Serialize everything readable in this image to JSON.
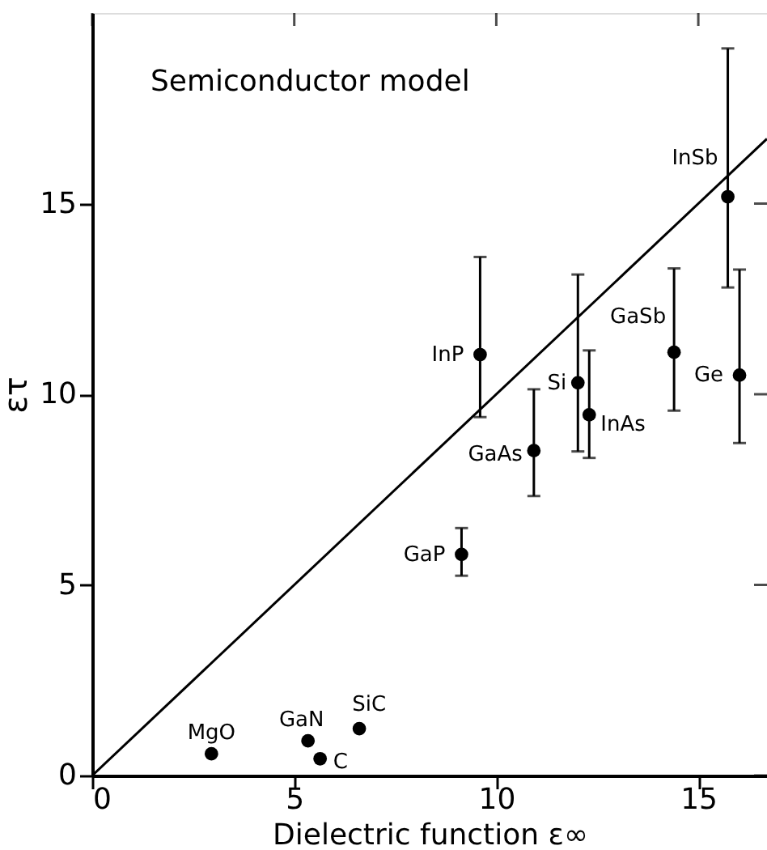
{
  "chart_data": {
    "type": "scatter",
    "xlabel": "Dielectric function ε∞",
    "ylabel": "ετ",
    "xlim": [
      0,
      16.7
    ],
    "ylim": [
      0,
      20
    ],
    "xticks": [
      0,
      5,
      10,
      15
    ],
    "yticks": [
      0,
      5,
      10,
      15
    ],
    "grid": false,
    "marker": "circle",
    "series": [
      {
        "color": "#000000",
        "x": [
          2.95,
          5.34,
          5.64,
          6.61,
          9.14,
          10.93,
          9.6,
          12.02,
          12.3,
          14.4,
          15.73,
          16.02
        ],
        "values": [
          0.57,
          0.91,
          0.44,
          1.23,
          5.8,
          8.52,
          11.04,
          10.3,
          9.46,
          11.1,
          15.18,
          10.5
        ],
        "errors": [
          null,
          null,
          null,
          null,
          [
            5.24,
            6.49
          ],
          [
            7.33,
            10.13
          ],
          [
            9.4,
            13.6
          ],
          [
            8.5,
            13.14
          ],
          [
            8.33,
            11.15
          ],
          [
            9.57,
            13.3
          ],
          [
            12.8,
            19.07
          ],
          [
            8.72,
            13.27
          ]
        ]
      },
      {
        "type": "line",
        "color": "#000000",
        "line_style": "solid",
        "marker": "none",
        "x": [
          0,
          16.7
        ],
        "values": [
          0,
          16.7
        ]
      }
    ],
    "annotations": [
      "Semiconductor model",
      {
        "text": "MgO",
        "x": 2.95,
        "y": 0.57
      },
      {
        "text": "GaN",
        "x": 5.34,
        "y": 0.91
      },
      {
        "text": "C",
        "x": 5.64,
        "y": 0.44
      },
      {
        "text": "SiC",
        "x": 6.61,
        "y": 1.23
      },
      {
        "text": "GaP",
        "x": 9.14,
        "y": 5.8
      },
      {
        "text": "GaAs",
        "x": 10.93,
        "y": 8.52
      },
      {
        "text": "InP",
        "x": 9.6,
        "y": 11.04
      },
      {
        "text": "Si",
        "x": 12.02,
        "y": 10.3
      },
      {
        "text": "InAs",
        "x": 12.3,
        "y": 9.46
      },
      {
        "text": "GaSb",
        "x": 14.4,
        "y": 11.1
      },
      {
        "text": "InSb",
        "x": 15.73,
        "y": 15.18
      },
      {
        "text": "Ge",
        "x": 16.02,
        "y": 10.5
      }
    ]
  }
}
